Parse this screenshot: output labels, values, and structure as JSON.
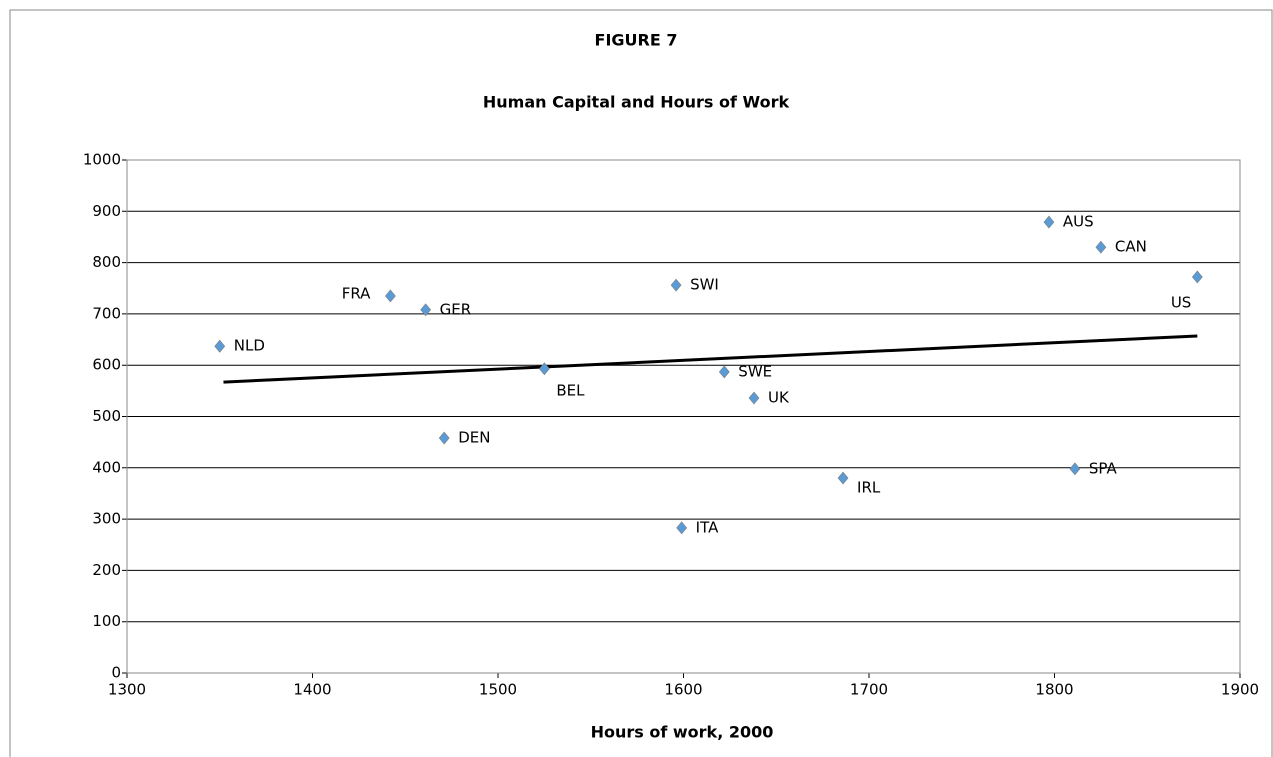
{
  "chart_data": {
    "type": "scatter",
    "title": "FIGURE 7",
    "subtitle": "Human Capital and Hours of Work",
    "x_label": "Hours of work, 2000",
    "labels": [
      "NLD",
      "FRA",
      "GER",
      "DEN",
      "BEL",
      "SWI",
      "ITA",
      "SWE",
      "UK",
      "IRL",
      "AUS",
      "CAN",
      "US",
      "SPA"
    ],
    "x": [
      1350,
      1442,
      1461,
      1471,
      1525,
      1596,
      1599,
      1622,
      1638,
      1686,
      1797,
      1825,
      1877,
      1811
    ],
    "values": [
      637,
      735,
      708,
      458,
      593,
      756,
      283,
      587,
      536,
      380,
      879,
      830,
      772,
      398
    ],
    "color": "#5b9bd5",
    "trendline": {
      "x": [
        1352,
        1877
      ],
      "values": [
        567,
        657
      ],
      "color": "#000000"
    },
    "xlim": [
      1300,
      1900
    ],
    "xticks": [
      1300,
      1400,
      1500,
      1600,
      1700,
      1800,
      1900
    ],
    "ylim": [
      0,
      1000
    ],
    "yticks": [
      0,
      100,
      200,
      300,
      400,
      500,
      600,
      700,
      800,
      900,
      1000
    ],
    "grid": true
  }
}
